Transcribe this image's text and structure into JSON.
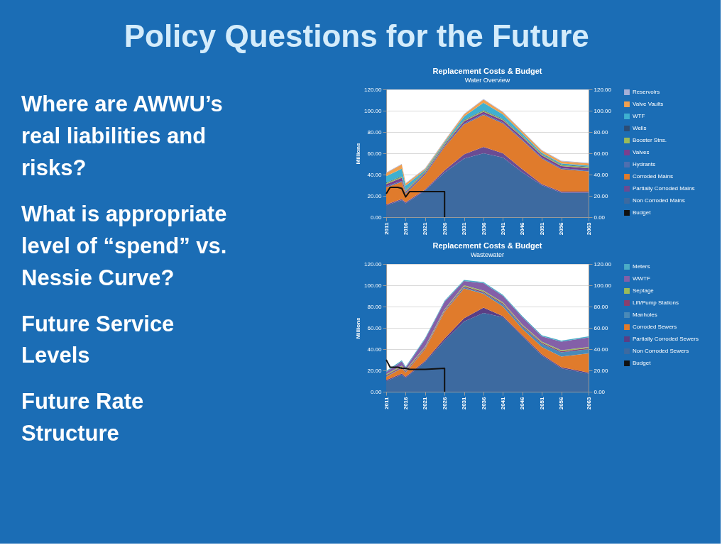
{
  "chart_data": [
    {
      "type": "area",
      "stacked": true,
      "title": "Replacement Costs & Budget",
      "subtitle": "Water Overview",
      "ylabel": "Millions",
      "annotations": [
        "Policy Questions for the Future",
        "Where are AWWU’s real liabilities and risks?",
        "What is appropriate level of “spend” vs. Nessie Curve?",
        "Future Service Levels",
        "Future Rate Structure"
      ],
      "x": [
        2011,
        2013,
        2015,
        2016,
        2021,
        2026,
        2031,
        2036,
        2041,
        2046,
        2051,
        2056,
        2063
      ],
      "xlim": [
        2011,
        2063
      ],
      "xticks": [
        2011,
        2016,
        2021,
        2026,
        2031,
        2036,
        2041,
        2046,
        2051,
        2056,
        2063
      ],
      "ylim": [
        0,
        120
      ],
      "yticks": [
        {
          "value": 0,
          "label": "0.00"
        },
        {
          "value": 20,
          "label": "20.00"
        },
        {
          "value": 40,
          "label": "40.00"
        },
        {
          "value": 60,
          "label": "60.00"
        },
        {
          "value": 80,
          "label": "80.00"
        },
        {
          "value": 100,
          "label": "100.00"
        },
        {
          "value": 120,
          "label": "120.00"
        }
      ],
      "y2lim": [
        0,
        120
      ],
      "y2ticks": [
        {
          "value": 0,
          "label": "0.00"
        },
        {
          "value": 20,
          "label": "20.00"
        },
        {
          "value": 40,
          "label": "40.00"
        },
        {
          "value": 60,
          "label": "60.00"
        },
        {
          "value": 80,
          "label": "80.00"
        },
        {
          "value": 100,
          "label": "100.00"
        },
        {
          "value": 120,
          "label": "120.00"
        }
      ],
      "grid": "y",
      "legend": "right",
      "series": [
        {
          "name": "Non Corroded Mains",
          "color": "#3d6aa0",
          "values": [
            11,
            13.5,
            16,
            13,
            25,
            42,
            55,
            60,
            56,
            42,
            30,
            23,
            23
          ]
        },
        {
          "name": "Partially Corroded Mains",
          "color": "#6a4c93",
          "values": [
            1,
            1,
            1,
            1,
            1,
            2,
            4,
            6,
            4,
            3,
            1,
            1,
            1
          ]
        },
        {
          "name": "Corroded Mains",
          "color": "#e07b2c",
          "values": [
            16,
            16,
            16,
            8,
            14,
            22,
            28,
            30,
            28,
            27,
            24,
            21,
            19
          ]
        },
        {
          "name": "Hydrants",
          "color": "#4f6fb0",
          "values": [
            1,
            1,
            1,
            1,
            1,
            1,
            1,
            1,
            1,
            1,
            1,
            1,
            1
          ]
        },
        {
          "name": "Valves",
          "color": "#7a3f8e",
          "values": [
            2,
            2.5,
            3,
            1,
            1,
            1,
            2,
            2,
            2,
            2,
            2,
            2,
            2
          ]
        },
        {
          "name": "Booster Stns.",
          "color": "#9bbb59",
          "values": [
            1,
            1,
            1,
            1,
            1,
            1,
            1,
            1,
            1,
            1,
            1,
            1,
            1
          ]
        },
        {
          "name": "Wells",
          "color": "#2c4d75",
          "values": [
            0.5,
            0.5,
            0.5,
            0.5,
            0.5,
            0.5,
            0.5,
            0.5,
            0.5,
            0.5,
            0.5,
            0.5,
            0.5
          ]
        },
        {
          "name": "WTF",
          "color": "#3fb0d0",
          "values": [
            6,
            6.5,
            7,
            4,
            1,
            1,
            3,
            7,
            4,
            2,
            1,
            1,
            1
          ]
        },
        {
          "name": "Valve Vaults",
          "color": "#f0a050",
          "values": [
            3,
            3.5,
            4,
            2,
            1,
            1,
            2,
            3,
            2,
            2,
            2,
            2,
            2
          ]
        },
        {
          "name": "Reservoirs",
          "color": "#a6b0d8",
          "values": [
            0.5,
            0.5,
            0.5,
            0.5,
            0.5,
            0.5,
            0.5,
            0.5,
            0.5,
            0.5,
            0.5,
            0.5,
            0.5
          ]
        },
        {
          "name": "Budget",
          "type": "line",
          "color": "#111111",
          "x": [
            2011,
            2012,
            2014,
            2015,
            2016,
            2017,
            2026,
            2026
          ],
          "values": [
            22,
            28,
            28,
            27,
            19,
            24,
            24,
            0
          ]
        }
      ]
    },
    {
      "type": "area",
      "stacked": true,
      "title": "Replacement Costs & Budget",
      "subtitle": "Wastewater",
      "ylabel": "Millions",
      "x": [
        2011,
        2013,
        2015,
        2016,
        2021,
        2026,
        2031,
        2036,
        2041,
        2046,
        2051,
        2056,
        2063
      ],
      "xlim": [
        2011,
        2063
      ],
      "xticks": [
        2011,
        2016,
        2021,
        2026,
        2031,
        2036,
        2041,
        2046,
        2051,
        2056,
        2063
      ],
      "ylim": [
        0,
        120
      ],
      "yticks": [
        {
          "value": 0,
          "label": "0.00"
        },
        {
          "value": 20,
          "label": "20.00"
        },
        {
          "value": 40,
          "label": "40.00"
        },
        {
          "value": 60,
          "label": "60.00"
        },
        {
          "value": 80,
          "label": "80.00"
        },
        {
          "value": 100,
          "label": "100.00"
        },
        {
          "value": 120,
          "label": "120.00"
        }
      ],
      "y2lim": [
        0,
        120
      ],
      "y2ticks": [
        {
          "value": 0,
          "label": "0.00"
        },
        {
          "value": 20,
          "label": "20.00"
        },
        {
          "value": 40,
          "label": "40.00"
        },
        {
          "value": 60,
          "label": "60.00"
        },
        {
          "value": 80,
          "label": "80.00"
        },
        {
          "value": 100,
          "label": "100.00"
        },
        {
          "value": 120,
          "label": "120.00"
        }
      ],
      "grid": "y",
      "legend": "right",
      "series": [
        {
          "name": "Non Corroded Sewers",
          "color": "#3d6aa0",
          "values": [
            10,
            13,
            16,
            13,
            28,
            48,
            66,
            74,
            70,
            52,
            34,
            22,
            17
          ]
        },
        {
          "name": "Partially Corroded Sewers",
          "color": "#5a3e85",
          "values": [
            1,
            1,
            1,
            1,
            1,
            2,
            3,
            5,
            1,
            1,
            1,
            1,
            1
          ]
        },
        {
          "name": "Corroded Sewers",
          "color": "#e07b2c",
          "values": [
            3,
            4,
            5,
            4,
            11,
            25,
            28,
            13,
            9,
            6,
            7,
            10,
            18
          ]
        },
        {
          "name": "Manholes",
          "color": "#4a8ab8",
          "values": [
            0.5,
            0.5,
            0.5,
            0.5,
            0.5,
            0.5,
            1,
            1,
            2,
            2,
            3,
            4,
            4
          ]
        },
        {
          "name": "Lift/Pump Stations",
          "color": "#8a3f6e",
          "values": [
            1,
            1,
            1,
            1,
            1,
            1,
            1,
            1,
            1,
            1,
            1,
            1,
            1
          ]
        },
        {
          "name": "Septage",
          "color": "#9bbb59",
          "values": [
            1,
            1,
            1,
            1,
            1,
            1,
            1,
            1,
            1,
            1,
            1,
            1,
            1
          ]
        },
        {
          "name": "WWTF",
          "color": "#8460a8",
          "values": [
            2,
            3,
            4,
            2,
            7,
            7,
            4,
            7,
            6,
            7,
            5,
            8,
            9
          ]
        },
        {
          "name": "Meters",
          "color": "#4bacc6",
          "values": [
            1,
            1,
            1,
            1,
            1,
            1,
            1,
            1,
            1,
            1,
            1,
            1,
            1
          ]
        },
        {
          "name": "Budget",
          "type": "line",
          "color": "#111111",
          "x": [
            2011,
            2012,
            2014,
            2015,
            2016,
            2017,
            2021,
            2026,
            2026
          ],
          "values": [
            30,
            23,
            23,
            22,
            22,
            21,
            21,
            22,
            0
          ]
        }
      ]
    }
  ]
}
